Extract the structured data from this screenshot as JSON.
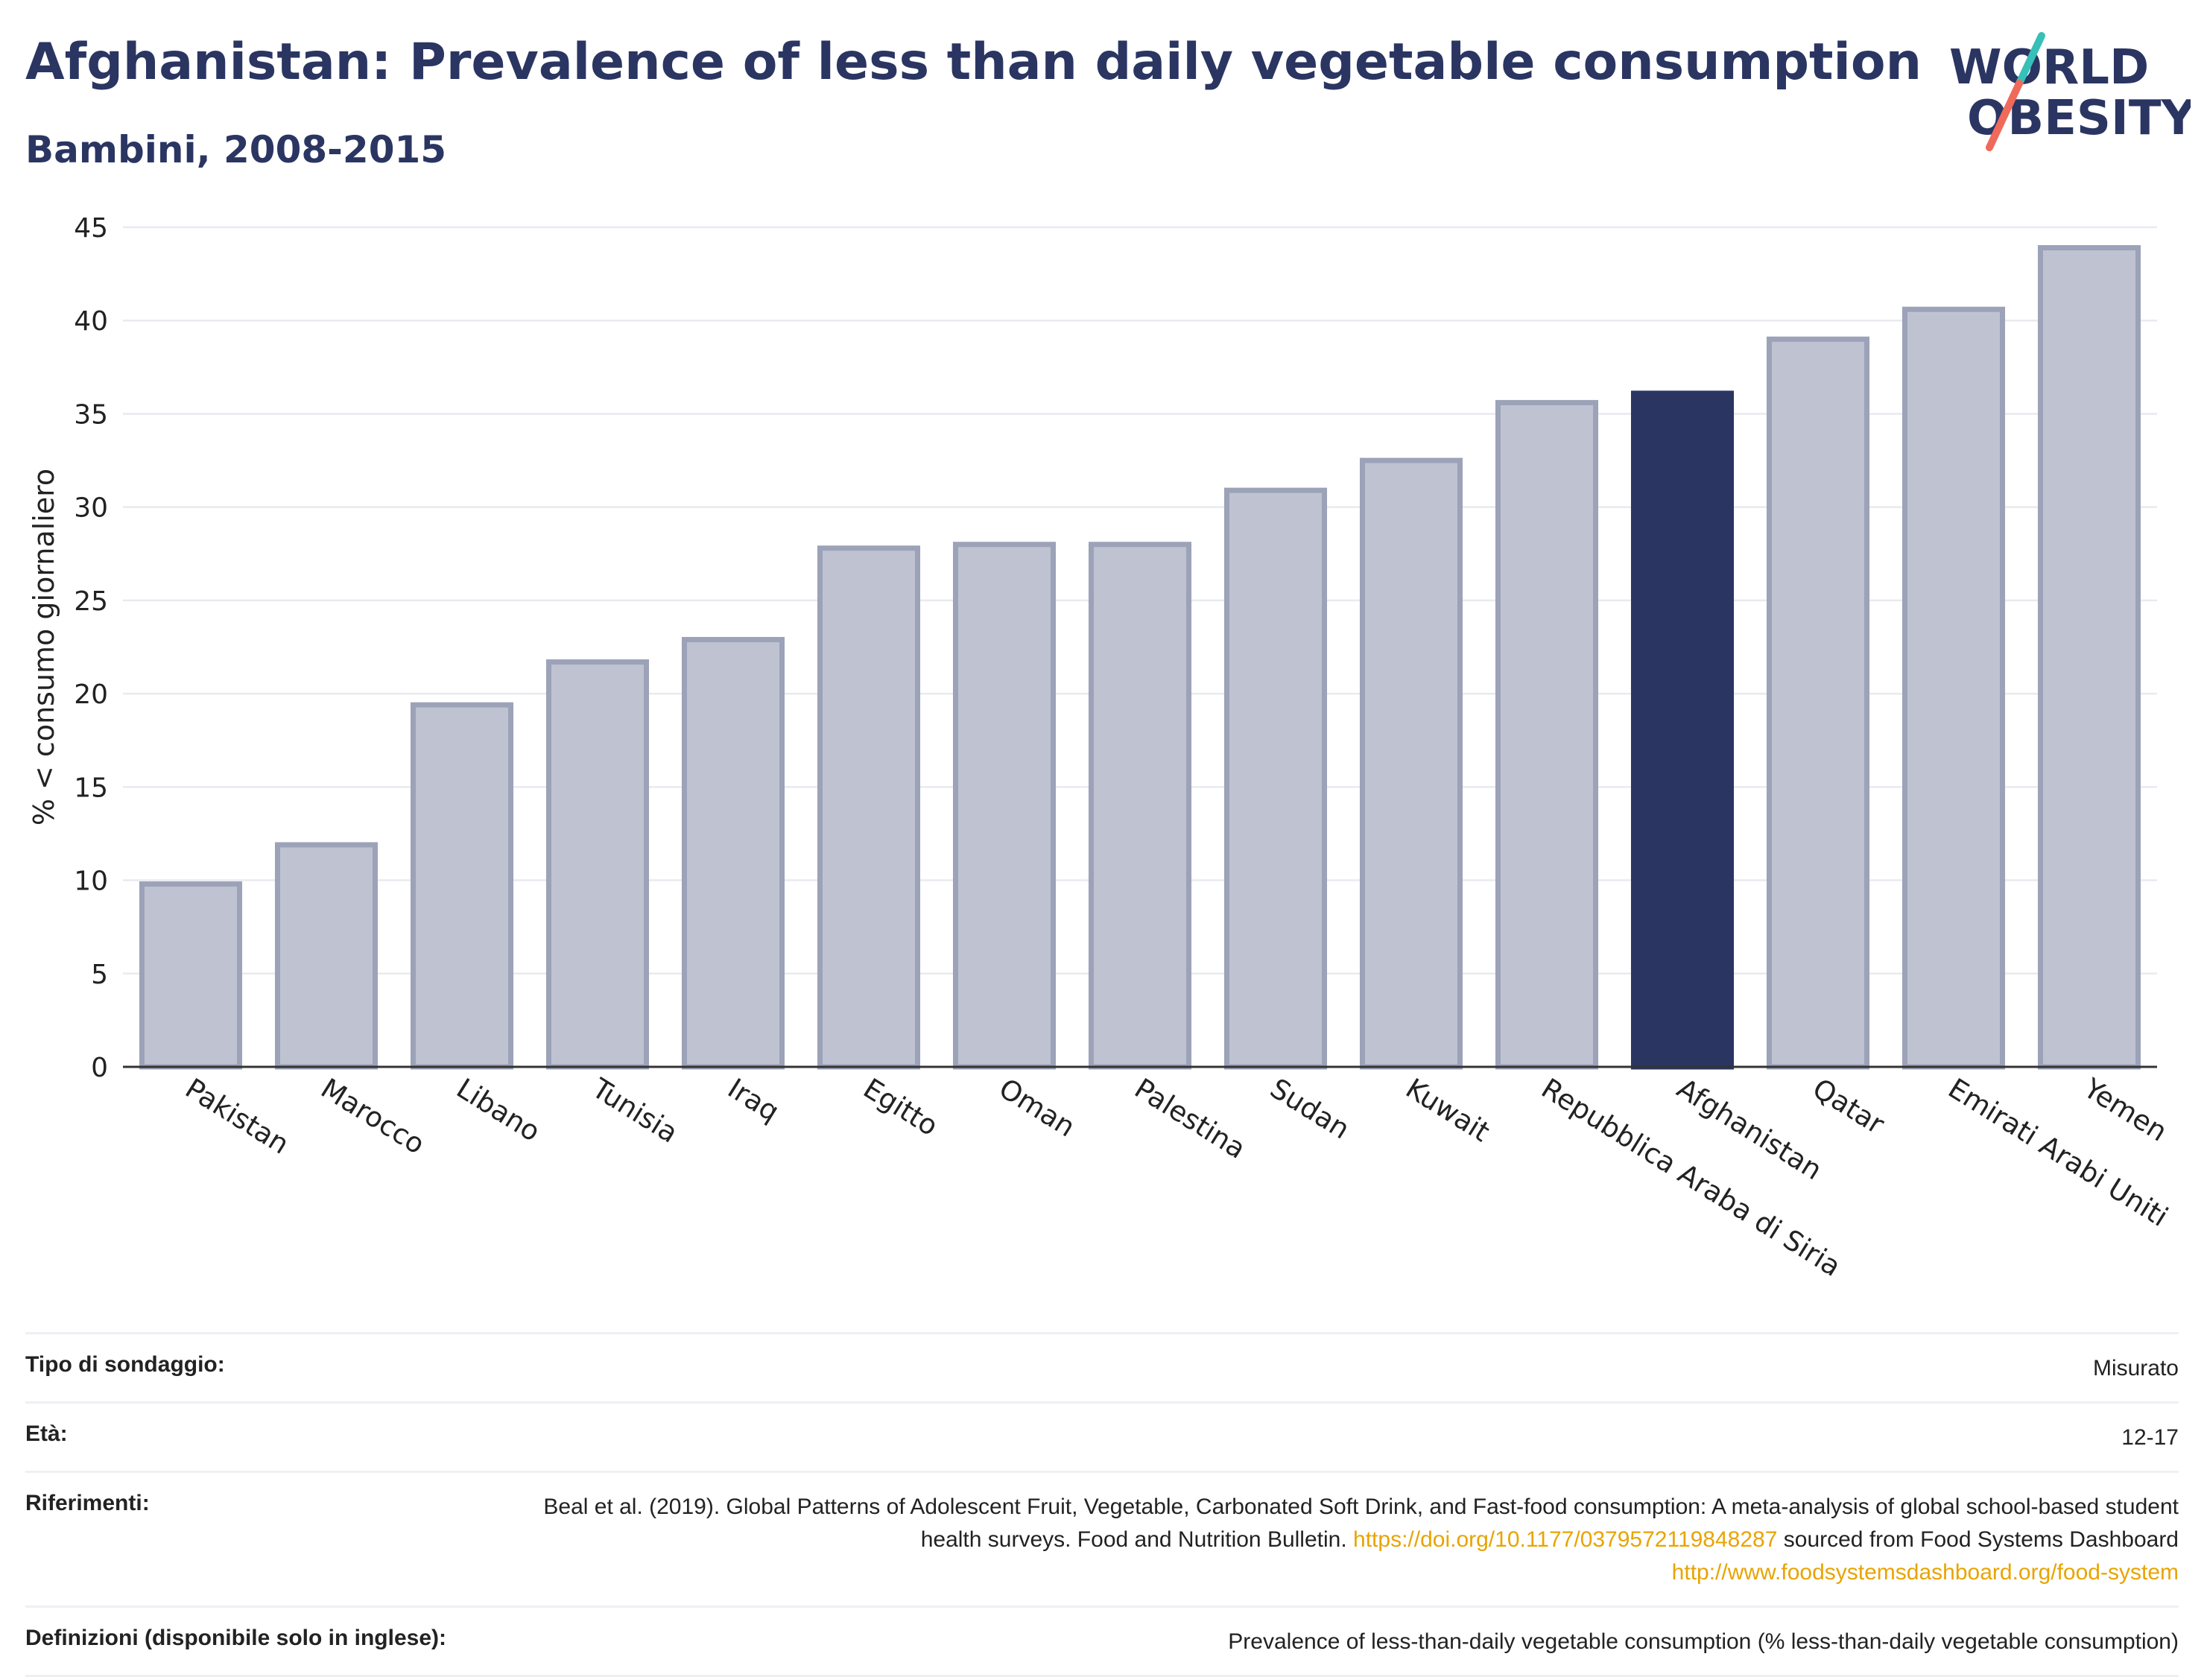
{
  "header": {
    "title": "Afghanistan: Prevalence of less than daily vegetable consumption",
    "subtitle": "Bambini, 2008-2015",
    "logo_line1": "WORLD",
    "logo_line2": "OBESITY"
  },
  "colors": {
    "highlight": "#2a3562",
    "bar": "#bfc3d1",
    "bar_border": "#9ca2b8",
    "accent_teal": "#36c0b8",
    "accent_coral": "#ef6a5a"
  },
  "chart_data": {
    "type": "bar",
    "ylabel": "% < consumo giornaliero",
    "ylim": [
      0,
      45
    ],
    "yticks": [
      "0",
      "5",
      "10",
      "15",
      "20",
      "25",
      "30",
      "35",
      "40",
      "45"
    ],
    "categories": [
      "Pakistan",
      "Marocco",
      "Libano",
      "Tunisia",
      "Iraq",
      "Egitto",
      "Oman",
      "Palestina",
      "Sudan",
      "Kuwait",
      "Repubblica Araba di Siria",
      "Afghanistan",
      "Qatar",
      "Emirati Arabi Uniti",
      "Yemen"
    ],
    "values": [
      9.8,
      11.9,
      19.4,
      21.7,
      22.9,
      27.8,
      28.0,
      28.0,
      30.9,
      32.5,
      35.6,
      36.1,
      39.0,
      40.6,
      43.9
    ],
    "highlight": "Afghanistan",
    "grid": true
  },
  "meta": {
    "survey_label": "Tipo di sondaggio:",
    "survey_value": "Misurato",
    "age_label": "Età:",
    "age_value": "12-17",
    "ref_label": "Riferimenti:",
    "ref_text1": "Beal et al. (2019). Global Patterns of Adolescent Fruit, Vegetable, Carbonated Soft Drink, and Fast-food consumption: A meta-analysis of global school-based student health surveys. Food and Nutrition Bulletin.",
    "ref_link1": "https://doi.org/10.1177/0379572119848287",
    "ref_text2": "sourced from Food Systems Dashboard",
    "ref_link2": "http://www.foodsystemsdashboard.org/food-system",
    "def_label": "Definizioni (disponibile solo in inglese):",
    "def_value": "Prevalence of less-than-daily vegetable consumption (% less-than-daily vegetable consumption)"
  }
}
